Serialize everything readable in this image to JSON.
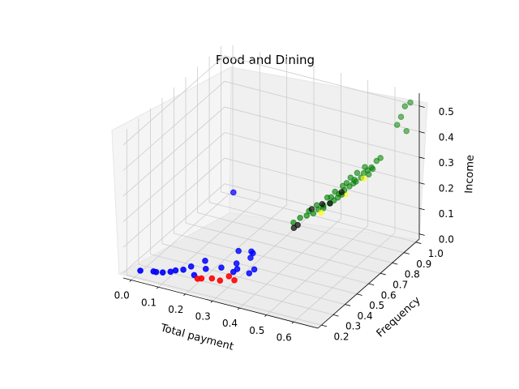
{
  "chart_data": {
    "type": "scatter",
    "title": "Food and Dining",
    "xlabel": "Total payment",
    "ylabel": "Frequency",
    "zlabel": "Income",
    "x_ticks": [
      "0.0",
      "0.1",
      "0.2",
      "0.3",
      "0.4",
      "0.5",
      "0.6"
    ],
    "y_ticks": [
      "0.2",
      "0.3",
      "0.4",
      "0.5",
      "0.6",
      "0.7",
      "0.8",
      "0.9",
      "1.0"
    ],
    "z_ticks": [
      "0.0",
      "0.1",
      "0.2",
      "0.3",
      "0.4",
      "0.5"
    ],
    "grid": true,
    "colors": {
      "blue": "#0000ff",
      "red": "#ff0000",
      "green": "#008000",
      "black": "#000000",
      "yellow": "#ffff00"
    },
    "series": [
      {
        "color": "blue",
        "points": [
          [
            0.02,
            0.2,
            0.01
          ],
          [
            0.06,
            0.22,
            0.01
          ],
          [
            0.07,
            0.22,
            0.01
          ],
          [
            0.09,
            0.23,
            0.01
          ],
          [
            0.11,
            0.25,
            0.01
          ],
          [
            0.12,
            0.27,
            0.01
          ],
          [
            0.14,
            0.29,
            0.01
          ],
          [
            0.16,
            0.31,
            0.02
          ],
          [
            0.19,
            0.36,
            0.03
          ],
          [
            0.18,
            0.29,
            0.0
          ],
          [
            0.21,
            0.32,
            0.02
          ],
          [
            0.25,
            0.36,
            0.02
          ],
          [
            0.28,
            0.42,
            0.02
          ],
          [
            0.29,
            0.37,
            0.01
          ],
          [
            0.3,
            0.38,
            0.02
          ],
          [
            0.34,
            0.39,
            0.01
          ],
          [
            0.35,
            0.41,
            0.02
          ],
          [
            0.31,
            0.47,
            0.03
          ],
          [
            0.27,
            0.46,
            0.05
          ],
          [
            0.3,
            0.5,
            0.04
          ],
          [
            0.31,
            0.49,
            0.04
          ],
          [
            0.19,
            0.6,
            0.2
          ]
        ]
      },
      {
        "color": "red",
        "points": [
          [
            0.21,
            0.25,
            0.01
          ],
          [
            0.22,
            0.26,
            0.01
          ],
          [
            0.25,
            0.28,
            0.01
          ],
          [
            0.28,
            0.28,
            0.01
          ],
          [
            0.3,
            0.31,
            0.02
          ],
          [
            0.32,
            0.31,
            0.01
          ]
        ]
      },
      {
        "color": "green",
        "points": [
          [
            0.36,
            0.72,
            0.08
          ],
          [
            0.38,
            0.73,
            0.1
          ],
          [
            0.4,
            0.74,
            0.11
          ],
          [
            0.42,
            0.75,
            0.12
          ],
          [
            0.43,
            0.77,
            0.13
          ],
          [
            0.44,
            0.79,
            0.13
          ],
          [
            0.46,
            0.8,
            0.15
          ],
          [
            0.47,
            0.81,
            0.16
          ],
          [
            0.48,
            0.82,
            0.17
          ],
          [
            0.49,
            0.83,
            0.18
          ],
          [
            0.5,
            0.83,
            0.2
          ],
          [
            0.51,
            0.85,
            0.21
          ],
          [
            0.52,
            0.86,
            0.22
          ],
          [
            0.53,
            0.86,
            0.23
          ],
          [
            0.54,
            0.88,
            0.24
          ],
          [
            0.55,
            0.88,
            0.26
          ],
          [
            0.56,
            0.89,
            0.27
          ],
          [
            0.57,
            0.9,
            0.28
          ],
          [
            0.58,
            0.92,
            0.3
          ],
          [
            0.59,
            0.93,
            0.31
          ],
          [
            0.45,
            0.8,
            0.17
          ],
          [
            0.47,
            0.82,
            0.19
          ],
          [
            0.49,
            0.84,
            0.21
          ],
          [
            0.51,
            0.86,
            0.24
          ],
          [
            0.53,
            0.87,
            0.26
          ],
          [
            0.55,
            0.89,
            0.28
          ],
          [
            0.44,
            0.79,
            0.14
          ],
          [
            0.46,
            0.81,
            0.17
          ],
          [
            0.48,
            0.83,
            0.18
          ],
          [
            0.5,
            0.85,
            0.22
          ],
          [
            0.52,
            0.87,
            0.23
          ],
          [
            0.56,
            0.9,
            0.25
          ],
          [
            0.57,
            0.91,
            0.27
          ],
          [
            0.4,
            0.76,
            0.12
          ],
          [
            0.42,
            0.78,
            0.14
          ],
          [
            0.63,
            0.98,
            0.43
          ],
          [
            0.64,
            0.99,
            0.46
          ],
          [
            0.65,
            1.0,
            0.5
          ],
          [
            0.66,
            0.99,
            0.41
          ],
          [
            0.67,
            1.0,
            0.52
          ]
        ]
      },
      {
        "color": "black",
        "points": [
          [
            0.37,
            0.7,
            0.07
          ],
          [
            0.38,
            0.71,
            0.08
          ],
          [
            0.41,
            0.76,
            0.13
          ],
          [
            0.44,
            0.78,
            0.15
          ],
          [
            0.46,
            0.8,
            0.15
          ],
          [
            0.49,
            0.83,
            0.19
          ]
        ]
      },
      {
        "color": "yellow",
        "points": [
          [
            0.44,
            0.77,
            0.12
          ],
          [
            0.5,
            0.84,
            0.18
          ],
          [
            0.55,
            0.88,
            0.24
          ]
        ]
      }
    ]
  }
}
